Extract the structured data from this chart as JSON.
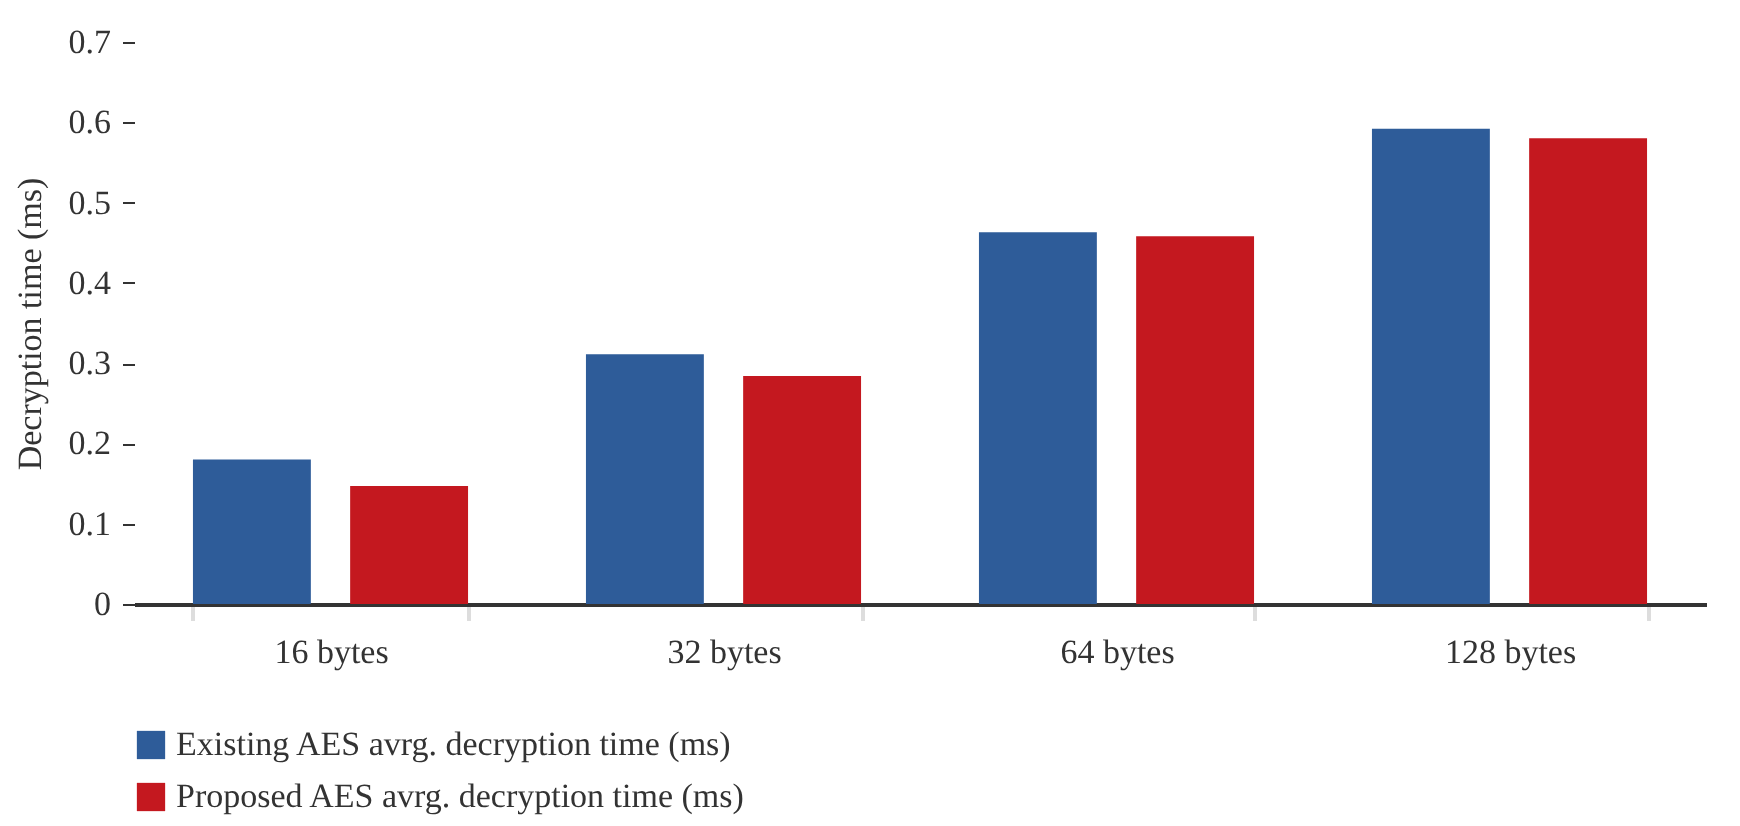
{
  "chart_data": {
    "type": "bar",
    "ylabel": "Decryption time (ms)",
    "categories": [
      "16 bytes",
      "32 bytes",
      "64 bytes",
      "128 bytes"
    ],
    "series": [
      {
        "name": "Existing AES avrg. decryption time (ms)",
        "color": "#2e5c99",
        "values": [
          0.18,
          0.311,
          0.463,
          0.592
        ]
      },
      {
        "name": "Proposed AES avrg. decryption time (ms)",
        "color": "#c4181f",
        "values": [
          0.147,
          0.284,
          0.458,
          0.58
        ]
      }
    ],
    "ylim": [
      0,
      0.7
    ],
    "yticks": [
      0,
      0.1,
      0.2,
      0.3,
      0.4,
      0.5,
      0.6,
      0.7
    ],
    "grid": false,
    "legend": "bottom left"
  }
}
